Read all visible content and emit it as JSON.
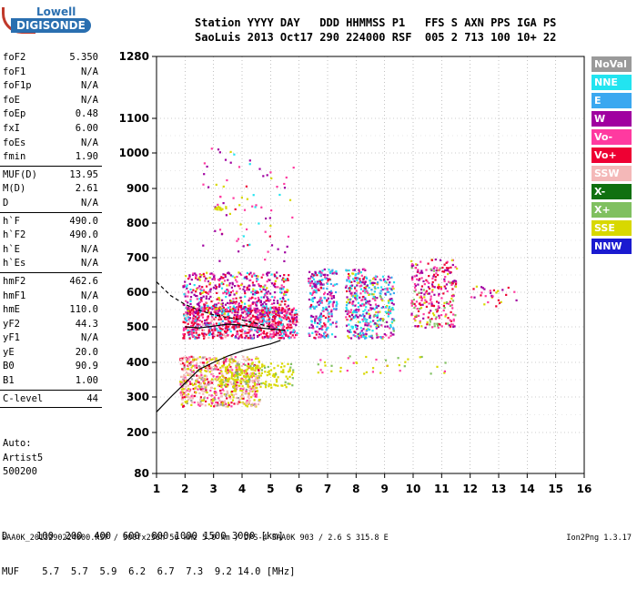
{
  "logo": {
    "line1": "Lowell",
    "line2": "DIGISONDE"
  },
  "header": {
    "line1": "Station YYYY DAY   DDD HHMMSS P1   FFS S AXN PPS IGA PS",
    "line2": "SaoLuis 2013 Oct17 290 224000 RSF  005 2 713 100 10+ 22"
  },
  "params": [
    {
      "name": "foF2",
      "value": "5.350",
      "sep_after": false
    },
    {
      "name": "foF1",
      "value": "N/A",
      "sep_after": false
    },
    {
      "name": "foF1p",
      "value": "N/A",
      "sep_after": false
    },
    {
      "name": "foE",
      "value": "N/A",
      "sep_after": false
    },
    {
      "name": "foEp",
      "value": "0.48",
      "sep_after": false
    },
    {
      "name": "fxI",
      "value": "6.00",
      "sep_after": false
    },
    {
      "name": "foEs",
      "value": "N/A",
      "sep_after": false
    },
    {
      "name": "fmin",
      "value": "1.90",
      "sep_after": true
    },
    {
      "name": "MUF(D)",
      "value": "13.95",
      "sep_after": false
    },
    {
      "name": "M(D)",
      "value": "2.61",
      "sep_after": false
    },
    {
      "name": "D",
      "value": "N/A",
      "sep_after": true
    },
    {
      "name": "h`F",
      "value": "490.0",
      "sep_after": false
    },
    {
      "name": "h`F2",
      "value": "490.0",
      "sep_after": false
    },
    {
      "name": "h`E",
      "value": "N/A",
      "sep_after": false
    },
    {
      "name": "h`Es",
      "value": "N/A",
      "sep_after": true
    },
    {
      "name": "hmF2",
      "value": "462.6",
      "sep_after": false
    },
    {
      "name": "hmF1",
      "value": "N/A",
      "sep_after": false
    },
    {
      "name": "hmE",
      "value": "110.0",
      "sep_after": false
    },
    {
      "name": "yF2",
      "value": "44.3",
      "sep_after": false
    },
    {
      "name": "yF1",
      "value": "N/A",
      "sep_after": false
    },
    {
      "name": "yE",
      "value": "20.0",
      "sep_after": false
    },
    {
      "name": "B0",
      "value": "90.9",
      "sep_after": false
    },
    {
      "name": "B1",
      "value": "1.00",
      "sep_after": true
    },
    {
      "name": "C-level",
      "value": "44",
      "sep_after": true
    }
  ],
  "autoscale": {
    "line1": "Auto:",
    "line2": "Artist5",
    "line3": "500200"
  },
  "legend": [
    {
      "label": "NoVal",
      "color": "#9a9a9a"
    },
    {
      "label": "NNE",
      "color": "#22e4f0"
    },
    {
      "label": "E",
      "color": "#3aa8f0"
    },
    {
      "label": "W",
      "color": "#a000a0"
    },
    {
      "label": "Vo-",
      "color": "#ff3aa0"
    },
    {
      "label": "Vo+",
      "color": "#ee0033"
    },
    {
      "label": "SSW",
      "color": "#f4b8b8"
    },
    {
      "label": "X-",
      "color": "#107010"
    },
    {
      "label": "X+",
      "color": "#80c060"
    },
    {
      "label": "SSE",
      "color": "#d8d800"
    },
    {
      "label": "NNW",
      "color": "#1a1ad0"
    }
  ],
  "freq_table": {
    "line1": "D     100  200  400  600  800 1000 1500 3000 [km]",
    "line2": "MUF    5.7  5.7  5.9  6.2  6.7  7.3  9.2 14.0 [MHz]"
  },
  "footer": {
    "left": "SAA0K_2013290224000.RSF / 300fx256h 50 kHz 5.0 km / DPS-4 SAA0K 903 / 2.6 S 315.8 E",
    "right": "Ion2Png 1.3.17"
  },
  "chart_data": {
    "type": "scatter",
    "xlim": [
      1,
      16
    ],
    "ylim": [
      80,
      1280
    ],
    "x_ticks": [
      "1",
      "2",
      "3",
      "4",
      "5",
      "6",
      "7",
      "8",
      "9",
      "10",
      "11",
      "12",
      "13",
      "14",
      "15",
      "16"
    ],
    "y_ticks": [
      "80",
      "200",
      "300",
      "400",
      "500",
      "600",
      "700",
      "800",
      "900",
      "1000",
      "1100",
      "1280"
    ],
    "x_unit": "MHz",
    "y_unit": "km",
    "clusters": [
      {
        "x": [
          1.9,
          5.9
        ],
        "y": [
          470,
          560
        ],
        "weights": {
          "Vo+": 5,
          "Vo-": 3,
          "W": 2,
          "NNE": 1,
          "E": 1,
          "SSW": 1
        },
        "n": 900
      },
      {
        "x": [
          1.9,
          5.6
        ],
        "y": [
          540,
          660
        ],
        "weights": {
          "W": 4,
          "Vo-": 3,
          "Vo+": 2,
          "SSE": 1,
          "NNE": 1
        },
        "n": 500
      },
      {
        "x": [
          1.8,
          4.6
        ],
        "y": [
          275,
          420
        ],
        "weights": {
          "SSW": 4,
          "Vo-": 2,
          "Vo+": 2,
          "SSE": 3,
          "NoVal": 1
        },
        "n": 700
      },
      {
        "x": [
          3.2,
          5.8
        ],
        "y": [
          330,
          400
        ],
        "weights": {
          "SSE": 4,
          "X+": 1
        },
        "n": 180
      },
      {
        "x": [
          6.3,
          7.3
        ],
        "y": [
          470,
          670
        ],
        "weights": {
          "NNE": 3,
          "E": 2,
          "W": 3,
          "Vo-": 2,
          "Vo+": 1
        },
        "n": 260
      },
      {
        "x": [
          7.6,
          8.3
        ],
        "y": [
          470,
          670
        ],
        "weights": {
          "NNE": 3,
          "E": 2,
          "W": 3,
          "Vo-": 2,
          "SSE": 1,
          "Vo+": 1
        },
        "n": 220
      },
      {
        "x": [
          8.3,
          9.3
        ],
        "y": [
          470,
          650
        ],
        "weights": {
          "NNE": 3,
          "E": 2,
          "W": 3,
          "Vo-": 2,
          "X+": 1,
          "SSE": 1
        },
        "n": 230
      },
      {
        "x": [
          9.9,
          11.5
        ],
        "y": [
          500,
          700
        ],
        "weights": {
          "Vo-": 3,
          "Vo+": 3,
          "W": 2,
          "SSE": 1,
          "X+": 1
        },
        "n": 260
      },
      {
        "x": [
          12.0,
          13.6
        ],
        "y": [
          560,
          620
        ],
        "weights": {
          "Vo-": 2,
          "Vo+": 2,
          "W": 1,
          "SSE": 1
        },
        "n": 30
      },
      {
        "x": [
          2.6,
          5.8
        ],
        "y": [
          690,
          1020
        ],
        "weights": {
          "Vo-": 2,
          "W": 2,
          "Vo+": 1,
          "SSE": 1,
          "NNE": 1
        },
        "n": 80
      },
      {
        "x": [
          3.0,
          3.6
        ],
        "y": [
          840,
          850
        ],
        "weights": {
          "SSE": 3
        },
        "n": 14
      },
      {
        "x": [
          6.5,
          11.5
        ],
        "y": [
          370,
          420
        ],
        "weights": {
          "SSE": 2,
          "X+": 1,
          "Vo-": 1
        },
        "n": 40
      }
    ],
    "curves": [
      {
        "name": "profile",
        "style": "solid",
        "x": [
          1.0,
          1.5,
          2.0,
          2.5,
          3.0,
          3.5,
          4.0,
          4.5,
          5.0,
          5.35
        ],
        "y": [
          258,
          300,
          340,
          380,
          400,
          418,
          432,
          442,
          452,
          462
        ]
      },
      {
        "name": "trace-upper",
        "style": "solid",
        "x": [
          2.0,
          2.5,
          3.0,
          3.5,
          4.0,
          4.5,
          5.0,
          5.5
        ],
        "y": [
          500,
          497,
          502,
          508,
          505,
          498,
          494,
          490
        ]
      },
      {
        "name": "trace-dashed",
        "style": "dashed",
        "x": [
          1.0,
          1.5,
          2.0,
          2.5,
          3.0,
          3.5,
          4.0,
          4.5,
          5.0
        ],
        "y": [
          630,
          590,
          565,
          548,
          535,
          527,
          520,
          510,
          500
        ]
      }
    ]
  }
}
